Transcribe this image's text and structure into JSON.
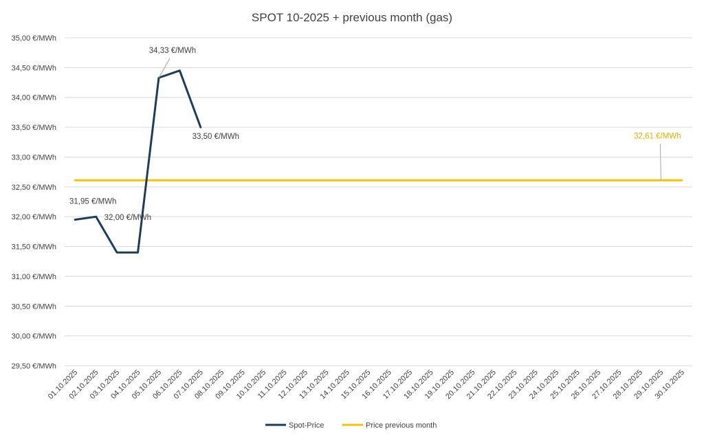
{
  "chart_data": {
    "type": "line",
    "title": "SPOT 10-2025 + previous month (gas)",
    "xlabel": "",
    "ylabel": "",
    "ylim": [
      29.5,
      35.0
    ],
    "y_ticks": [
      "29,50 €/MWh",
      "30,00 €/MWh",
      "30,50 €/MWh",
      "31,00 €/MWh",
      "31,50 €/MWh",
      "32,00 €/MWh",
      "32,50 €/MWh",
      "33,00 €/MWh",
      "33,50 €/MWh",
      "34,00 €/MWh",
      "34,50 €/MWh",
      "35,00 €/MWh"
    ],
    "categories": [
      "01.10.2025",
      "02.10.2025",
      "03.10.2025",
      "04.10.2025",
      "05.10.2025",
      "06.10.2025",
      "07.10.2025",
      "08.10.2025",
      "09.10.2025",
      "10.10.2025",
      "11.10.2025",
      "12.10.2025",
      "13.10.2025",
      "14.10.2025",
      "15.10.2025",
      "16.10.2025",
      "17.10.2025",
      "18.10.2025",
      "19.10.2025",
      "20.10.2025",
      "21.10.2025",
      "22.10.2025",
      "23.10.2025",
      "24.10.2025",
      "25.10.2025",
      "26.10.2025",
      "27.10.2025",
      "28.10.2025",
      "29.10.2025",
      "30.10.2025"
    ],
    "grid": true,
    "legend_position": "bottom",
    "series": [
      {
        "name": "Spot-Price",
        "color": "#1b3d5c",
        "values": [
          31.95,
          32.0,
          31.4,
          31.4,
          34.33,
          34.45,
          33.5,
          null,
          null,
          null,
          null,
          null,
          null,
          null,
          null,
          null,
          null,
          null,
          null,
          null,
          null,
          null,
          null,
          null,
          null,
          null,
          null,
          null,
          null,
          null
        ]
      },
      {
        "name": "Price previous month",
        "color": "#f5c400",
        "values": [
          32.61,
          32.61,
          32.61,
          32.61,
          32.61,
          32.61,
          32.61,
          32.61,
          32.61,
          32.61,
          32.61,
          32.61,
          32.61,
          32.61,
          32.61,
          32.61,
          32.61,
          32.61,
          32.61,
          32.61,
          32.61,
          32.61,
          32.61,
          32.61,
          32.61,
          32.61,
          32.61,
          32.61,
          32.61,
          32.61
        ]
      }
    ],
    "annotations": [
      {
        "series": 0,
        "index": 0,
        "text": "31,95 €/MWh",
        "color": "#404040"
      },
      {
        "series": 0,
        "index": 1,
        "text": "32,00 €/MWh",
        "color": "#404040"
      },
      {
        "series": 0,
        "index": 4,
        "text": "34,33 €/MWh",
        "color": "#404040"
      },
      {
        "series": 0,
        "index": 6,
        "text": "33,50 €/MWh",
        "color": "#404040"
      },
      {
        "series": 1,
        "index": 28,
        "text": "32,61 €/MWh",
        "color": "#e0b000"
      }
    ]
  }
}
